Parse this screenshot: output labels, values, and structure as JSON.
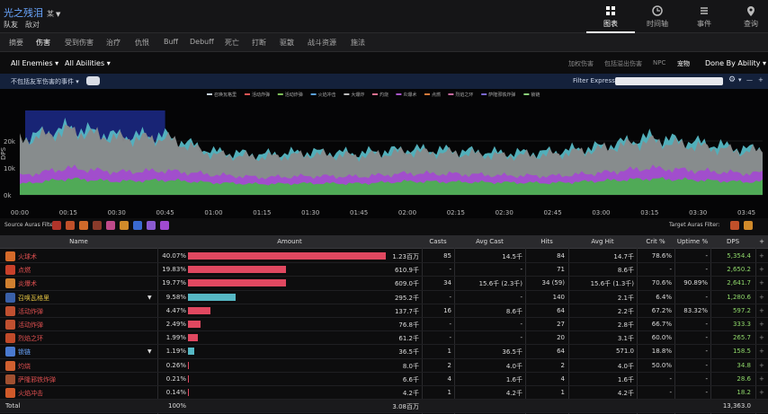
{
  "header": {
    "title": "光之残泪",
    "title_tag": "某",
    "subtitle_left": "队友",
    "subtitle_right": "敌对",
    "views": [
      {
        "label": "图表",
        "icon": "chart-grid-icon"
      },
      {
        "label": "时间轴",
        "icon": "clock-icon"
      },
      {
        "label": "事件",
        "icon": "list-icon"
      },
      {
        "label": "查询",
        "icon": "location-pin-icon"
      }
    ]
  },
  "nav_tabs": [
    "摘要",
    "伤害",
    "受到伤害",
    "治疗",
    "仇恨",
    "Buff",
    "Debuff",
    "死亡",
    "打断",
    "驱散",
    "战斗资源",
    "施法"
  ],
  "filters": {
    "enemies": "All Enemies",
    "abilities": "All Abilities",
    "right_options": [
      "加权伤害",
      "包括溢出伤害",
      "NPC",
      "宠物"
    ],
    "done_by": "Done By Ability"
  },
  "filter_bar": {
    "left_label": "不包括友军伤害的事件",
    "expr_label": "Filter Expression"
  },
  "chart_data": {
    "type": "area",
    "legend": [
      "召唤瓦格里",
      "活动炸弹",
      "活动炸弹",
      "火焰冲击",
      "大爆炸",
      "灼烧",
      "炎爆术",
      "点燃",
      "烈焰之环",
      "萨隆邪铁炸弹",
      "锁链"
    ],
    "legend_colors": [
      "#c9d6e6",
      "#e05555",
      "#7fbf5a",
      "#5aa0d8",
      "#bcbcbc",
      "#e07090",
      "#a856c8",
      "#d67a3a",
      "#c76aa0",
      "#7a68d0",
      "#8ad07a"
    ],
    "ylabel": "DPS",
    "yticks": [
      "0k",
      "10k",
      "20k"
    ],
    "ylim": [
      0,
      32000
    ],
    "xticks": [
      "00:00",
      "00:15",
      "00:30",
      "00:45",
      "01:00",
      "01:15",
      "01:30",
      "01:45",
      "02:00",
      "02:15",
      "02:30",
      "02:45",
      "03:00",
      "03:15",
      "03:30",
      "03:45"
    ],
    "x": [
      0,
      15,
      30,
      45,
      60,
      75,
      90,
      105,
      120,
      135,
      150,
      165,
      180,
      195,
      210,
      225,
      230
    ],
    "series": [
      {
        "values": [
          4000,
          6000,
          5000,
          5500,
          4500,
          4000,
          4300,
          4200,
          5000,
          4800,
          4600,
          4400,
          5200,
          6000,
          5500,
          4800,
          5000
        ]
      },
      {
        "values": [
          7000,
          10000,
          8500,
          9000,
          7500,
          6500,
          7000,
          6800,
          8000,
          7800,
          7200,
          7000,
          8200,
          10000,
          9000,
          8000,
          8200
        ]
      },
      {
        "values": [
          20000,
          24000,
          21000,
          21000,
          15000,
          14000,
          15000,
          14500,
          16000,
          15500,
          14500,
          15000,
          17000,
          20000,
          18000,
          16000,
          16500
        ]
      },
      {
        "values": [
          21000,
          25000,
          22000,
          22000,
          16000,
          15000,
          16000,
          15500,
          17000,
          16500,
          15500,
          16000,
          18000,
          21500,
          19500,
          17000,
          17500
        ]
      }
    ]
  },
  "auras": {
    "source_label": "Source Auras Filter:",
    "target_label": "Target Auras Filter:",
    "source_colors": [
      "#b0342a",
      "#c0502a",
      "#d06a2a",
      "#8a3a2a",
      "#c04a8a",
      "#d08a2a",
      "#3a6ad0",
      "#8a5ad0",
      "#a04ad0"
    ],
    "target_colors": [
      "#c0502a",
      "#d08a2a"
    ]
  },
  "table": {
    "columns": [
      "Name",
      "Amount",
      "Casts",
      "Avg Cast",
      "Hits",
      "Avg Hit",
      "Crit %",
      "Uptime %",
      "DPS",
      "+"
    ],
    "rows": [
      {
        "name": "火球术",
        "color": "#e05050",
        "icon": "#d56a2a",
        "pct": "40.07%",
        "bar": 40.07,
        "barColor": "#e04860",
        "amount": "1.23百万",
        "casts": "85",
        "avgCast": "14.5千",
        "hits": "84",
        "avgHit": "14.7千",
        "crit": "78.6%",
        "uptime": "-",
        "dps": "5,354.4",
        "expand": false
      },
      {
        "name": "点燃",
        "color": "#e05050",
        "icon": "#c8402a",
        "pct": "19.83%",
        "bar": 19.83,
        "barColor": "#e04860",
        "amount": "610.9千",
        "casts": "-",
        "avgCast": "-",
        "hits": "71",
        "avgHit": "8.6千",
        "crit": "-",
        "uptime": "-",
        "dps": "2,650.2",
        "expand": false
      },
      {
        "name": "炎爆术",
        "color": "#e05050",
        "icon": "#d08030",
        "pct": "19.77%",
        "bar": 19.77,
        "barColor": "#e04860",
        "amount": "609.0千",
        "casts": "34",
        "avgCast": "15.6千 (2.3千)",
        "hits": "34 (59)",
        "avgHit": "15.6千 (1.3千)",
        "crit": "70.6%",
        "uptime": "90.89%",
        "dps": "2,641.7",
        "expand": false
      },
      {
        "name": "召唤瓦格里",
        "color": "#e0c040",
        "icon": "#3a60a8",
        "pct": "9.58%",
        "bar": 9.58,
        "barColor": "#56b8c4",
        "amount": "295.2千",
        "casts": "-",
        "avgCast": "-",
        "hits": "140",
        "avgHit": "2.1千",
        "crit": "6.4%",
        "uptime": "-",
        "dps": "1,280.6",
        "expand": true
      },
      {
        "name": "活动炸弹",
        "color": "#e05050",
        "icon": "#c05030",
        "pct": "4.47%",
        "bar": 4.47,
        "barColor": "#e04860",
        "amount": "137.7千",
        "casts": "16",
        "avgCast": "8.6千",
        "hits": "64",
        "avgHit": "2.2千",
        "crit": "67.2%",
        "uptime": "83.32%",
        "dps": "597.2",
        "expand": false
      },
      {
        "name": "活动炸弹",
        "color": "#e05050",
        "icon": "#c05030",
        "pct": "2.49%",
        "bar": 2.49,
        "barColor": "#e04860",
        "amount": "76.8千",
        "casts": "-",
        "avgCast": "-",
        "hits": "27",
        "avgHit": "2.8千",
        "crit": "66.7%",
        "uptime": "-",
        "dps": "333.3",
        "expand": false
      },
      {
        "name": "烈焰之环",
        "color": "#e05050",
        "icon": "#c04a2a",
        "pct": "1.99%",
        "bar": 1.99,
        "barColor": "#e04860",
        "amount": "61.2千",
        "casts": "-",
        "avgCast": "-",
        "hits": "20",
        "avgHit": "3.1千",
        "crit": "60.0%",
        "uptime": "-",
        "dps": "265.7",
        "expand": false
      },
      {
        "name": "锁链",
        "color": "#6aa6ff",
        "icon": "#4a7ad0",
        "pct": "1.19%",
        "bar": 1.19,
        "barColor": "#56b8c4",
        "amount": "36.5千",
        "casts": "1",
        "avgCast": "36.5千",
        "hits": "64",
        "avgHit": "571.0",
        "crit": "18.8%",
        "uptime": "-",
        "dps": "158.5",
        "expand": true
      },
      {
        "name": "灼烧",
        "color": "#e05050",
        "icon": "#d06030",
        "pct": "0.26%",
        "bar": 0.26,
        "barColor": "#e04860",
        "amount": "8.0千",
        "casts": "2",
        "avgCast": "4.0千",
        "hits": "2",
        "avgHit": "4.0千",
        "crit": "50.0%",
        "uptime": "-",
        "dps": "34.8",
        "expand": false
      },
      {
        "name": "萨隆邪铁炸弹",
        "color": "#e05050",
        "icon": "#a05030",
        "pct": "0.21%",
        "bar": 0.21,
        "barColor": "#e04860",
        "amount": "6.6千",
        "casts": "4",
        "avgCast": "1.6千",
        "hits": "4",
        "avgHit": "1.6千",
        "crit": "-",
        "uptime": "-",
        "dps": "28.6",
        "expand": false
      },
      {
        "name": "火焰冲击",
        "color": "#e05050",
        "icon": "#d05a2a",
        "pct": "0.14%",
        "bar": 0.14,
        "barColor": "#e04860",
        "amount": "4.2千",
        "casts": "1",
        "avgCast": "4.2千",
        "hits": "1",
        "avgHit": "4.2千",
        "crit": "-",
        "uptime": "-",
        "dps": "18.2",
        "expand": false
      }
    ],
    "total": {
      "name": "Total",
      "pct": "100%",
      "amount": "3.08百万",
      "dps": "13,363.0"
    }
  }
}
